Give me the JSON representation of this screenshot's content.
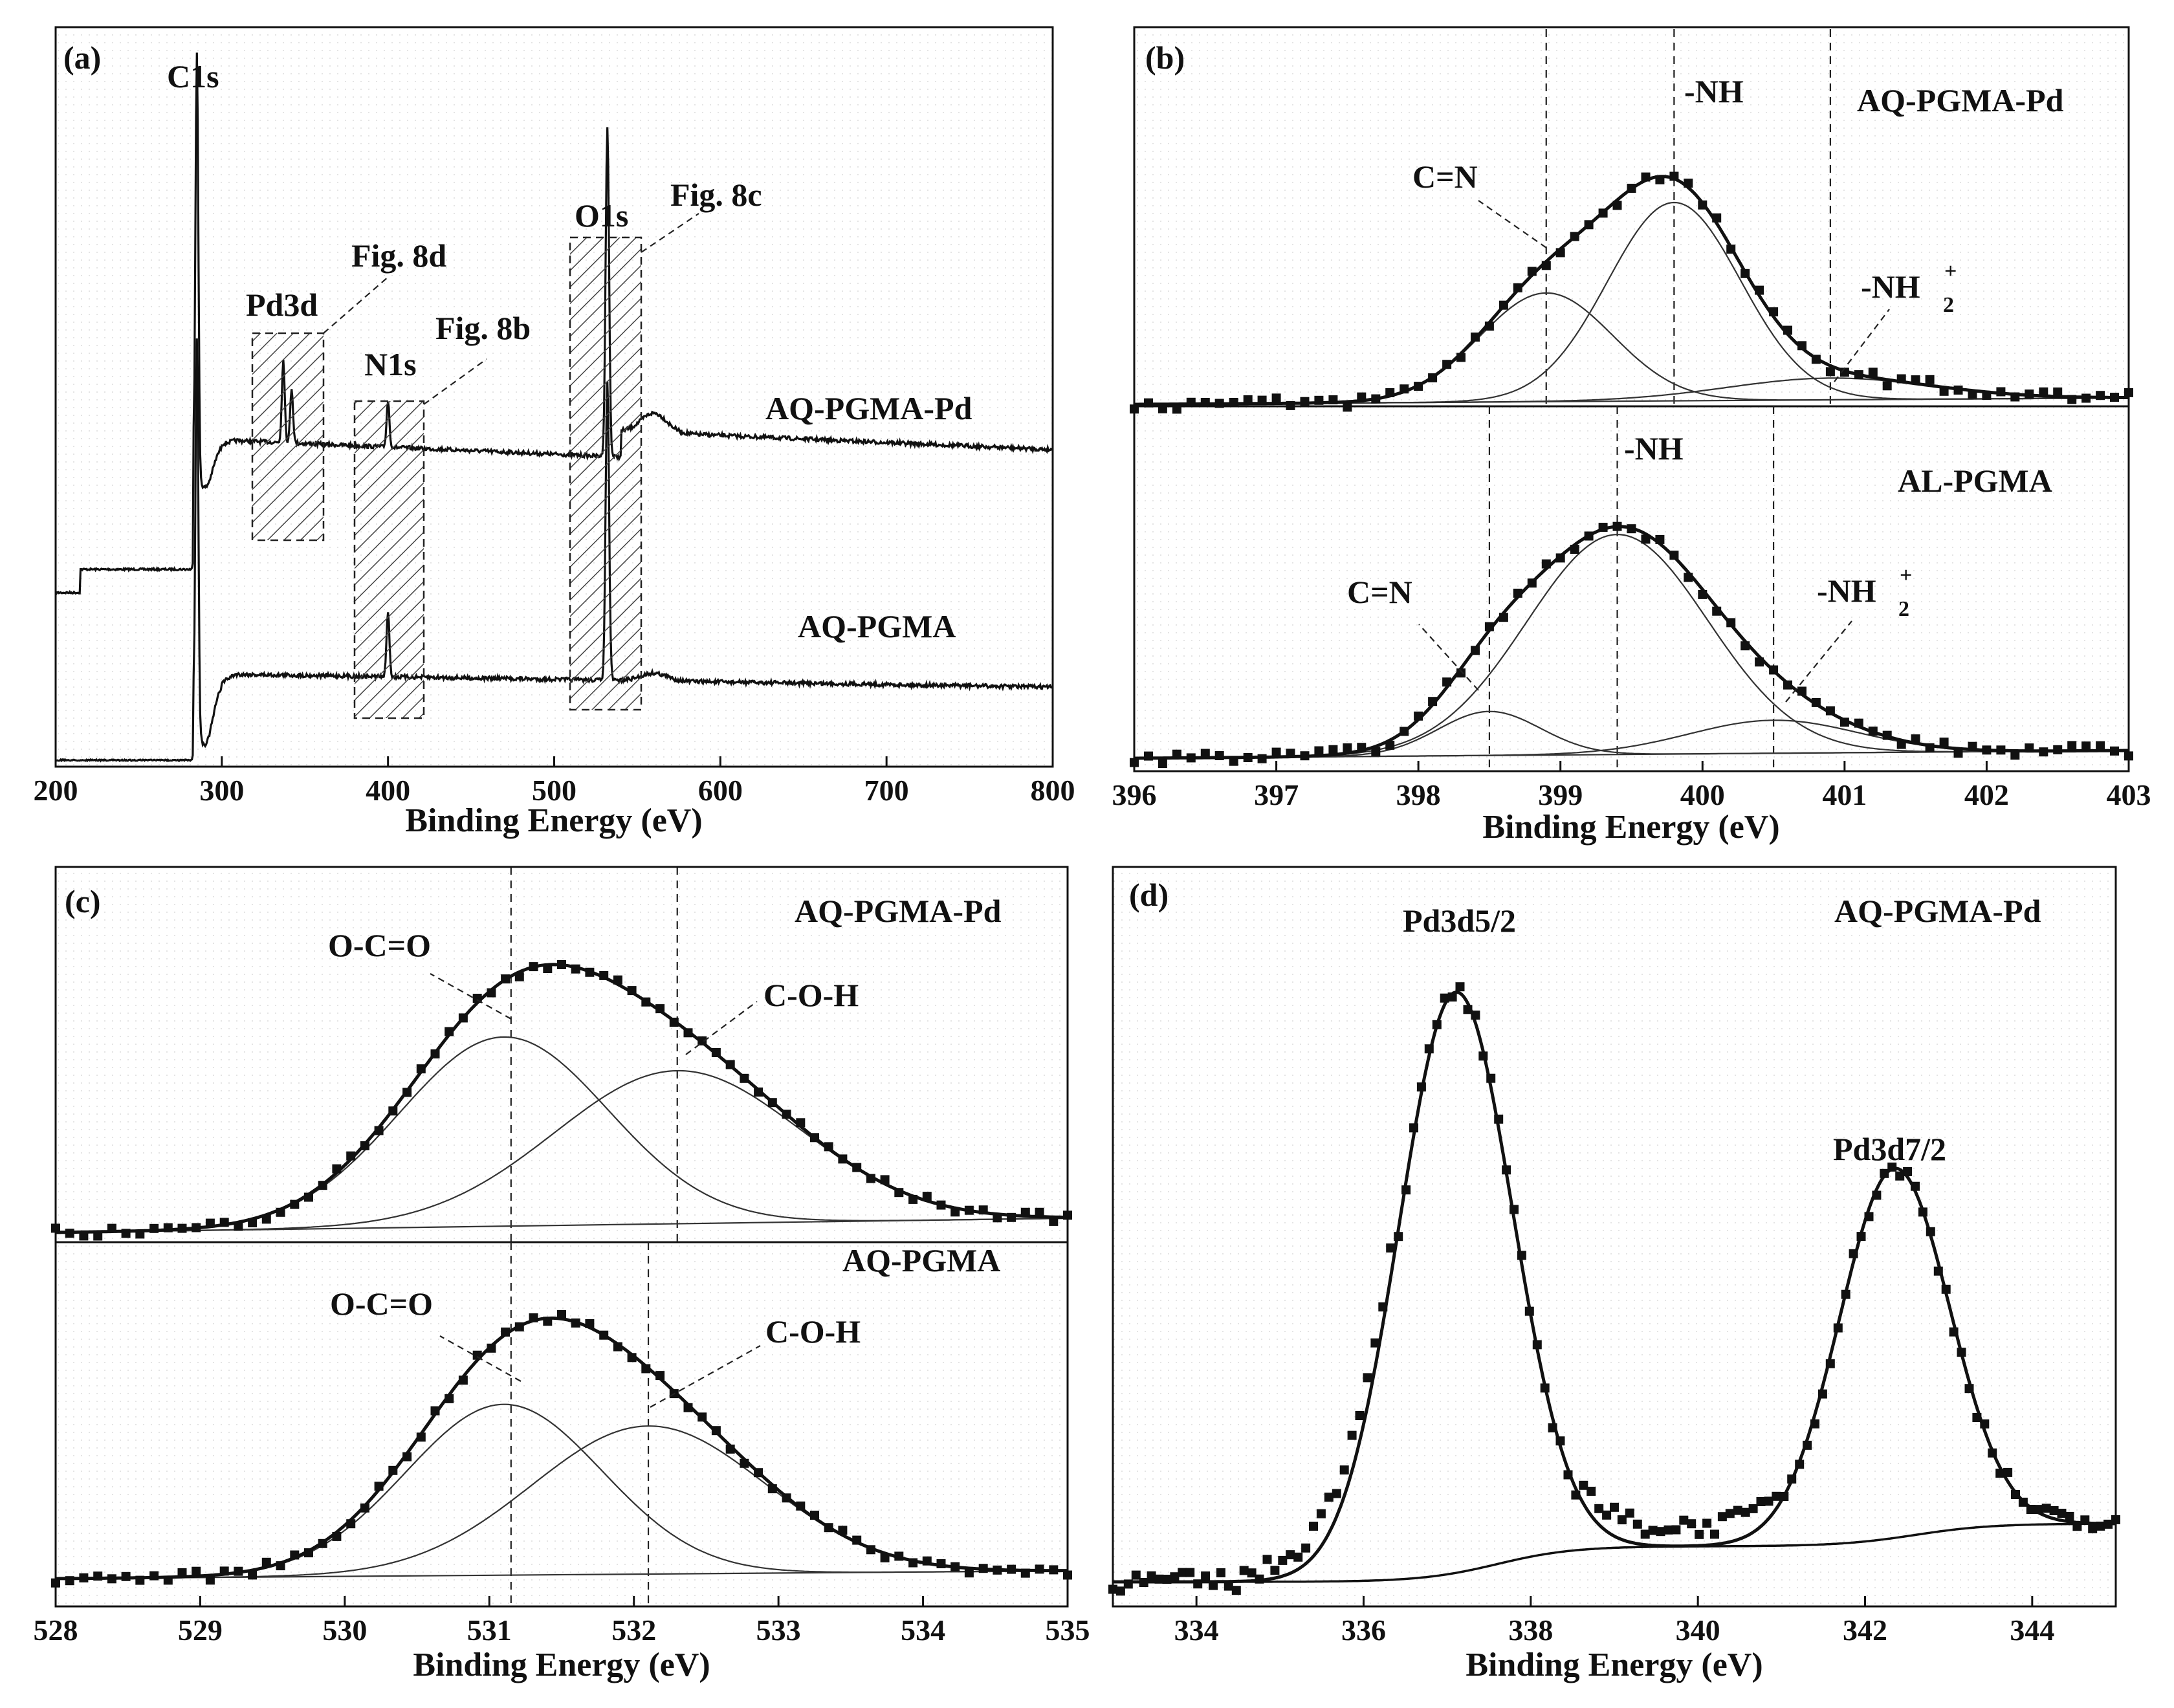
{
  "chart_data": [
    {
      "id": "a",
      "panel_label": "(a)",
      "type": "line",
      "xlabel": "Binding Energy (eV)",
      "xlim": [
        200,
        800
      ],
      "xticks": [
        "200",
        "300",
        "400",
        "500",
        "600",
        "700",
        "800"
      ],
      "series": [
        {
          "name": "AQ-PGMA-Pd",
          "peaks": [
            {
              "label": "C1s",
              "x": 285
            },
            {
              "label": "Pd3d",
              "x": 337
            },
            {
              "label": "N1s",
              "x": 400
            },
            {
              "label": "O1s",
              "x": 532
            }
          ]
        },
        {
          "name": "AQ-PGMA",
          "peaks": [
            {
              "label": "C1s",
              "x": 285
            },
            {
              "label": "N1s",
              "x": 400
            },
            {
              "label": "O1s",
              "x": 532
            }
          ]
        }
      ],
      "annotations": {
        "c1s": "C1s",
        "pd3d": "Pd3d",
        "n1s": "N1s",
        "o1s": "O1s",
        "fig8b": "Fig. 8b",
        "fig8c": "Fig. 8c",
        "fig8d": "Fig. 8d"
      },
      "highlight_ranges": [
        [
          318,
          362
        ],
        [
          383,
          422
        ],
        [
          509,
          552
        ]
      ]
    },
    {
      "id": "b",
      "panel_label": "(b)",
      "type": "scatter",
      "xlabel": "Binding Energy (eV)",
      "xlim": [
        396,
        403
      ],
      "xticks": [
        "396",
        "397",
        "398",
        "399",
        "400",
        "401",
        "402",
        "403"
      ],
      "subplots": [
        {
          "sample": "AQ-PGMA-Pd",
          "components": [
            {
              "label": "C=N",
              "center": 398.9,
              "intensity": 0.4,
              "fwhm": 1.1
            },
            {
              "label": "-NH",
              "center": 399.8,
              "intensity": 0.73,
              "fwhm": 1.1
            },
            {
              "label": "-NH2+",
              "center": 400.9,
              "intensity": 0.08,
              "fwhm": 1.7
            }
          ],
          "dashed_lines": [
            398.9,
            399.8,
            400.9
          ]
        },
        {
          "sample": "AL-PGMA",
          "components": [
            {
              "label": "C=N",
              "center": 398.5,
              "intensity": 0.16,
              "fwhm": 0.85
            },
            {
              "label": "-NH",
              "center": 399.4,
              "intensity": 0.8,
              "fwhm": 1.5
            },
            {
              "label": "-NH2+",
              "center": 400.5,
              "intensity": 0.12,
              "fwhm": 1.4
            }
          ],
          "dashed_lines": [
            398.5,
            399.4,
            400.5
          ]
        }
      ],
      "annotations": {
        "cn": "C=N",
        "nh": "-NH",
        "nh2": "-NH",
        "nh2_sup": "+",
        "nh2_sub": "2"
      }
    },
    {
      "id": "c",
      "panel_label": "(c)",
      "type": "scatter",
      "xlabel": "Binding Energy (eV)",
      "xlim": [
        528,
        535
      ],
      "xticks": [
        "528",
        "529",
        "530",
        "531",
        "532",
        "533",
        "534",
        "535"
      ],
      "subplots": [
        {
          "sample": "AQ-PGMA-Pd",
          "components": [
            {
              "label": "O-C=O",
              "center": 531.1,
              "intensity": 0.68,
              "fwhm": 1.7
            },
            {
              "label": "C-O-H",
              "center": 532.3,
              "intensity": 0.55,
              "fwhm": 2.0
            }
          ],
          "dashed_lines": [
            531.15,
            532.3
          ]
        },
        {
          "sample": "AQ-PGMA",
          "components": [
            {
              "label": "O-C=O",
              "center": 531.1,
              "intensity": 0.6,
              "fwhm": 1.6
            },
            {
              "label": "C-O-H",
              "center": 532.1,
              "intensity": 0.52,
              "fwhm": 1.9
            }
          ],
          "dashed_lines": [
            531.15,
            532.1
          ]
        }
      ],
      "annotations": {
        "ocoo": "O-C=O",
        "coh": "C-O-H"
      }
    },
    {
      "id": "d",
      "panel_label": "(d)",
      "type": "scatter",
      "xlabel": "Binding Energy (eV)",
      "xlim": [
        333,
        345
      ],
      "xticks": [
        "334",
        "336",
        "338",
        "340",
        "342",
        "344"
      ],
      "sample": "AQ-PGMA-Pd",
      "components": [
        {
          "label": "Pd3d5/2",
          "center": 337.1,
          "intensity": 0.88,
          "fwhm": 1.6
        },
        {
          "label": "Pd3d7/2",
          "center": 342.35,
          "intensity": 0.56,
          "fwhm": 1.55
        }
      ]
    }
  ]
}
